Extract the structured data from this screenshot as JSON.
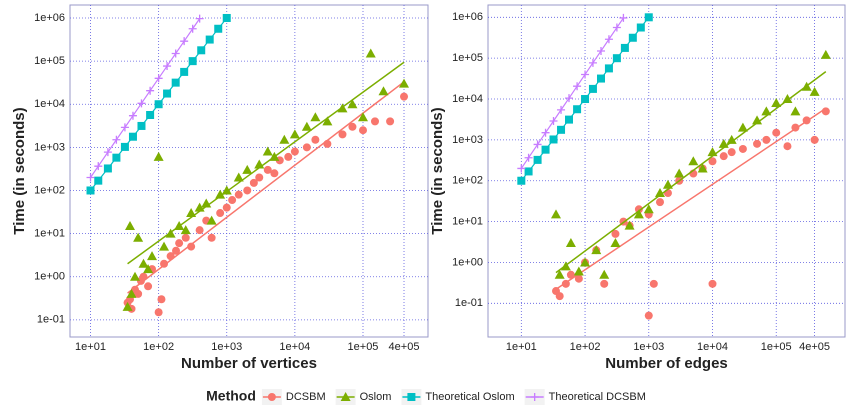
{
  "chart_data": [
    {
      "type": "scatter",
      "xlabel": "Number of vertices",
      "ylabel": "Time (in seconds)",
      "log_x": true,
      "log_y": true,
      "grid": true,
      "legend": "bottom",
      "legend_title": "Method",
      "xlim": [
        5,
        900000
      ],
      "ylim": [
        0.04,
        2000000
      ],
      "xticks": [
        {
          "value": 10,
          "label": "1e+01"
        },
        {
          "value": 100,
          "label": "1e+02"
        },
        {
          "value": 1000,
          "label": "1e+03"
        },
        {
          "value": 10000,
          "label": "1e+04"
        },
        {
          "value": 100000,
          "label": "1e+05"
        },
        {
          "value": 400000,
          "label": "4e+05"
        }
      ],
      "yticks": [
        {
          "value": 0.1,
          "label": "1e-01"
        },
        {
          "value": 1,
          "label": "1e+00"
        },
        {
          "value": 10,
          "label": "1e+01"
        },
        {
          "value": 100,
          "label": "1e+02"
        },
        {
          "value": 1000,
          "label": "1e+03"
        },
        {
          "value": 10000,
          "label": "1e+04"
        },
        {
          "value": 100000,
          "label": "1e+05"
        },
        {
          "value": 1000000,
          "label": "1e+06"
        }
      ],
      "series": [
        {
          "name": "DCSBM",
          "color": "#f8766d",
          "marker": "circle",
          "x": [
            35,
            38,
            40,
            45,
            50,
            55,
            60,
            70,
            80,
            100,
            110,
            120,
            150,
            180,
            200,
            250,
            300,
            400,
            500,
            600,
            800,
            1000,
            1200,
            1500,
            2000,
            2500,
            3000,
            4000,
            5000,
            6000,
            8000,
            10000,
            15000,
            20000,
            30000,
            50000,
            70000,
            100000,
            150000,
            250000,
            400000
          ],
          "values": [
            0.25,
            0.3,
            0.18,
            0.5,
            0.4,
            0.8,
            1.0,
            0.6,
            1.5,
            0.15,
            0.3,
            2,
            3,
            4,
            6,
            8,
            5,
            12,
            20,
            8,
            30,
            40,
            60,
            80,
            100,
            150,
            200,
            300,
            250,
            500,
            600,
            800,
            1000,
            1500,
            1200,
            2000,
            3000,
            2500,
            4000,
            4000,
            15000
          ]
        },
        {
          "name": "Oslom",
          "color": "#7cae00",
          "marker": "triangle",
          "x": [
            35,
            38,
            40,
            45,
            50,
            60,
            70,
            80,
            100,
            120,
            150,
            200,
            250,
            300,
            400,
            500,
            600,
            800,
            1000,
            1500,
            2000,
            3000,
            4000,
            5000,
            7000,
            10000,
            15000,
            20000,
            30000,
            50000,
            70000,
            100000,
            130000,
            200000,
            400000
          ],
          "values": [
            0.2,
            15,
            0.4,
            1,
            8,
            2,
            1.5,
            3,
            600,
            5,
            10,
            15,
            12,
            30,
            40,
            50,
            20,
            80,
            100,
            200,
            300,
            400,
            800,
            600,
            1500,
            2000,
            3000,
            5000,
            4000,
            8000,
            10000,
            5000,
            150000,
            20000,
            30000
          ]
        },
        {
          "name": "Theoretical Oslom",
          "color": "#00bfc4",
          "marker": "square",
          "line": true,
          "x": [
            10,
            13,
            18,
            24,
            32,
            42,
            56,
            75,
            100,
            133,
            178,
            237,
            316,
            422,
            562,
            750,
            1000
          ],
          "values": [
            100,
            169,
            324,
            576,
            1024,
            1764,
            3136,
            5625,
            10000,
            17689,
            31684,
            56169,
            99856,
            178084,
            315844,
            562500,
            1000000
          ]
        },
        {
          "name": "Theoretical DCSBM",
          "color": "#c77cff",
          "marker": "plus",
          "line": true,
          "x": [
            10,
            13,
            18,
            24,
            32,
            42,
            56,
            75,
            100,
            133,
            178,
            237,
            316,
            400
          ],
          "values": [
            200,
            366,
            774,
            1500,
            2900,
            5420,
            10500,
            20600,
            39900,
            76800,
            150000,
            290000,
            562000,
            966000
          ]
        }
      ]
    },
    {
      "type": "scatter",
      "xlabel": "Number of edges",
      "ylabel": "Time (in seconds)",
      "log_x": true,
      "log_y": true,
      "grid": true,
      "xlim": [
        3,
        1200000
      ],
      "ylim": [
        0.015,
        2000000
      ],
      "xticks": [
        {
          "value": 10,
          "label": "1e+01"
        },
        {
          "value": 100,
          "label": "1e+02"
        },
        {
          "value": 1000,
          "label": "1e+03"
        },
        {
          "value": 10000,
          "label": "1e+04"
        },
        {
          "value": 100000,
          "label": "1e+05"
        },
        {
          "value": 400000,
          "label": "4e+05"
        }
      ],
      "yticks": [
        {
          "value": 0.1,
          "label": "1e-01"
        },
        {
          "value": 1,
          "label": "1e+00"
        },
        {
          "value": 10,
          "label": "1e+01"
        },
        {
          "value": 100,
          "label": "1e+02"
        },
        {
          "value": 1000,
          "label": "1e+03"
        },
        {
          "value": 10000,
          "label": "1e+04"
        },
        {
          "value": 100000,
          "label": "1e+05"
        },
        {
          "value": 1000000,
          "label": "1e+06"
        }
      ],
      "series": [
        {
          "name": "DCSBM",
          "color": "#f8766d",
          "marker": "circle",
          "x": [
            35,
            40,
            50,
            60,
            80,
            100,
            150,
            200,
            300,
            400,
            500,
            700,
            1000,
            1000,
            1200,
            1500,
            2000,
            3000,
            5000,
            7000,
            10000,
            10000,
            15000,
            20000,
            30000,
            50000,
            70000,
            100000,
            150000,
            200000,
            300000,
            400000,
            600000
          ],
          "values": [
            0.2,
            0.15,
            0.3,
            0.5,
            0.4,
            1,
            2,
            0.3,
            5,
            10,
            8,
            20,
            15,
            0.05,
            0.3,
            30,
            50,
            100,
            150,
            200,
            300,
            0.3,
            400,
            500,
            600,
            800,
            1000,
            1500,
            700,
            2000,
            3000,
            1000,
            5000
          ]
        },
        {
          "name": "Oslom",
          "color": "#7cae00",
          "marker": "triangle",
          "x": [
            35,
            40,
            50,
            60,
            80,
            100,
            150,
            200,
            300,
            500,
            700,
            1000,
            1500,
            2000,
            3000,
            5000,
            7000,
            10000,
            15000,
            20000,
            30000,
            50000,
            70000,
            100000,
            150000,
            200000,
            300000,
            400000,
            600000
          ],
          "values": [
            15,
            0.5,
            0.8,
            3,
            0.6,
            1,
            2,
            0.5,
            3,
            8,
            15,
            20,
            50,
            80,
            150,
            300,
            200,
            500,
            800,
            1000,
            2000,
            3000,
            5000,
            8000,
            10000,
            5000,
            20000,
            15000,
            120000
          ]
        },
        {
          "name": "Theoretical Oslom",
          "color": "#00bfc4",
          "marker": "square",
          "line": true,
          "x": [
            10,
            13,
            18,
            24,
            32,
            42,
            56,
            75,
            100,
            133,
            178,
            237,
            316,
            422,
            562,
            750,
            1000
          ],
          "values": [
            100,
            169,
            324,
            576,
            1024,
            1764,
            3136,
            5625,
            10000,
            17689,
            31684,
            56169,
            99856,
            178084,
            315844,
            562500,
            1000000
          ]
        },
        {
          "name": "Theoretical DCSBM",
          "color": "#c77cff",
          "marker": "plus",
          "line": true,
          "x": [
            10,
            13,
            18,
            24,
            32,
            42,
            56,
            75,
            100,
            133,
            178,
            237,
            316,
            400
          ],
          "values": [
            200,
            366,
            774,
            1500,
            2900,
            5420,
            10500,
            20600,
            39900,
            76800,
            150000,
            290000,
            562000,
            966000
          ]
        }
      ]
    }
  ]
}
